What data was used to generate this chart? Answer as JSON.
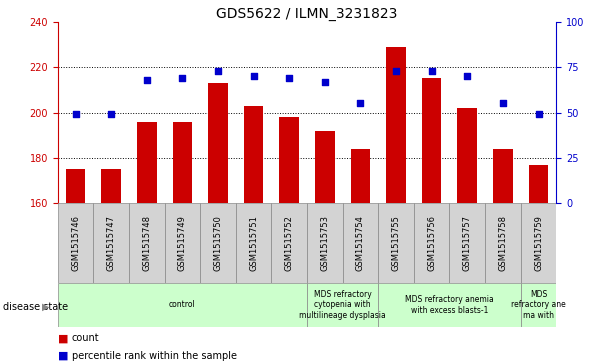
{
  "title": "GDS5622 / ILMN_3231823",
  "samples": [
    "GSM1515746",
    "GSM1515747",
    "GSM1515748",
    "GSM1515749",
    "GSM1515750",
    "GSM1515751",
    "GSM1515752",
    "GSM1515753",
    "GSM1515754",
    "GSM1515755",
    "GSM1515756",
    "GSM1515757",
    "GSM1515758",
    "GSM1515759"
  ],
  "counts": [
    175,
    175,
    196,
    196,
    213,
    203,
    198,
    192,
    184,
    229,
    215,
    202,
    184,
    177
  ],
  "percentile_ranks": [
    49,
    49,
    68,
    69,
    73,
    70,
    69,
    67,
    55,
    73,
    73,
    70,
    55,
    49
  ],
  "ylim_left": [
    160,
    240
  ],
  "ylim_right": [
    0,
    100
  ],
  "yticks_left": [
    160,
    180,
    200,
    220,
    240
  ],
  "yticks_right": [
    0,
    25,
    50,
    75,
    100
  ],
  "bar_color": "#cc0000",
  "dot_color": "#0000cc",
  "bar_bottom": 160,
  "grid_values": [
    180,
    200,
    220
  ],
  "ds_regions": [
    {
      "label": "control",
      "start": 0,
      "end": 7,
      "color": "#ccffcc"
    },
    {
      "label": "MDS refractory\ncytopenia with\nmultilineage dysplasia",
      "start": 7,
      "end": 9,
      "color": "#ccffcc"
    },
    {
      "label": "MDS refractory anemia\nwith excess blasts-1",
      "start": 9,
      "end": 13,
      "color": "#ccffcc"
    },
    {
      "label": "MDS\nrefractory ane\nma with",
      "start": 13,
      "end": 14,
      "color": "#ccffcc"
    }
  ],
  "label_gray": "#d3d3d3",
  "label_fontsize": 6,
  "tick_fontsize": 7,
  "title_fontsize": 10,
  "ds_fontsize": 5.5,
  "legend_fontsize": 7,
  "right_tick_color": "#0000cc",
  "left_tick_color": "#cc0000"
}
